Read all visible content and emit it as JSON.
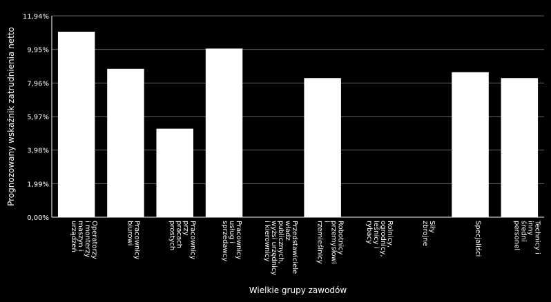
{
  "chart_data": {
    "type": "bar",
    "xlabel": "Wielkie grupy zawodów",
    "ylabel": "Prognozowany wskaźnik zatrudnienia netto",
    "ylim": [
      0,
      11.94
    ],
    "yticks": [
      "0,00%",
      "1,99%",
      "3,98%",
      "5,97%",
      "7,96%",
      "9,95%",
      "11,94%"
    ],
    "grid": true,
    "colors": {
      "background": "#000000",
      "bar": "#ffffff",
      "grid": "#666666",
      "axis": "#ffffff"
    },
    "categories": [
      [
        "Operatorzy",
        "i monterzy",
        "maszyn i",
        "urządzeń"
      ],
      [
        "Pracownicy",
        "biurowi"
      ],
      [
        "Pracownicy",
        "przy",
        "pracach",
        "prostych"
      ],
      [
        "Pracownicy",
        "usług i",
        "sprzedawcy"
      ],
      [
        "Przedstawiciele",
        "władz",
        "publicznych,",
        "wyżsi urzędnicy",
        "i kierownicy"
      ],
      [
        "Robotnicy",
        "przemysłowi",
        "i",
        "rzemieślnicy"
      ],
      [
        "Rolnicy,",
        "ogrodnicy,",
        "leśnicy i",
        "rybacy"
      ],
      [
        "Siły",
        "zbrojne"
      ],
      [
        "Specjaliści"
      ],
      [
        "Technicy i",
        "inny",
        "średni",
        "personel"
      ]
    ],
    "values": [
      11.0,
      8.8,
      5.25,
      10.0,
      0,
      8.25,
      0,
      0,
      8.6,
      8.25
    ]
  }
}
